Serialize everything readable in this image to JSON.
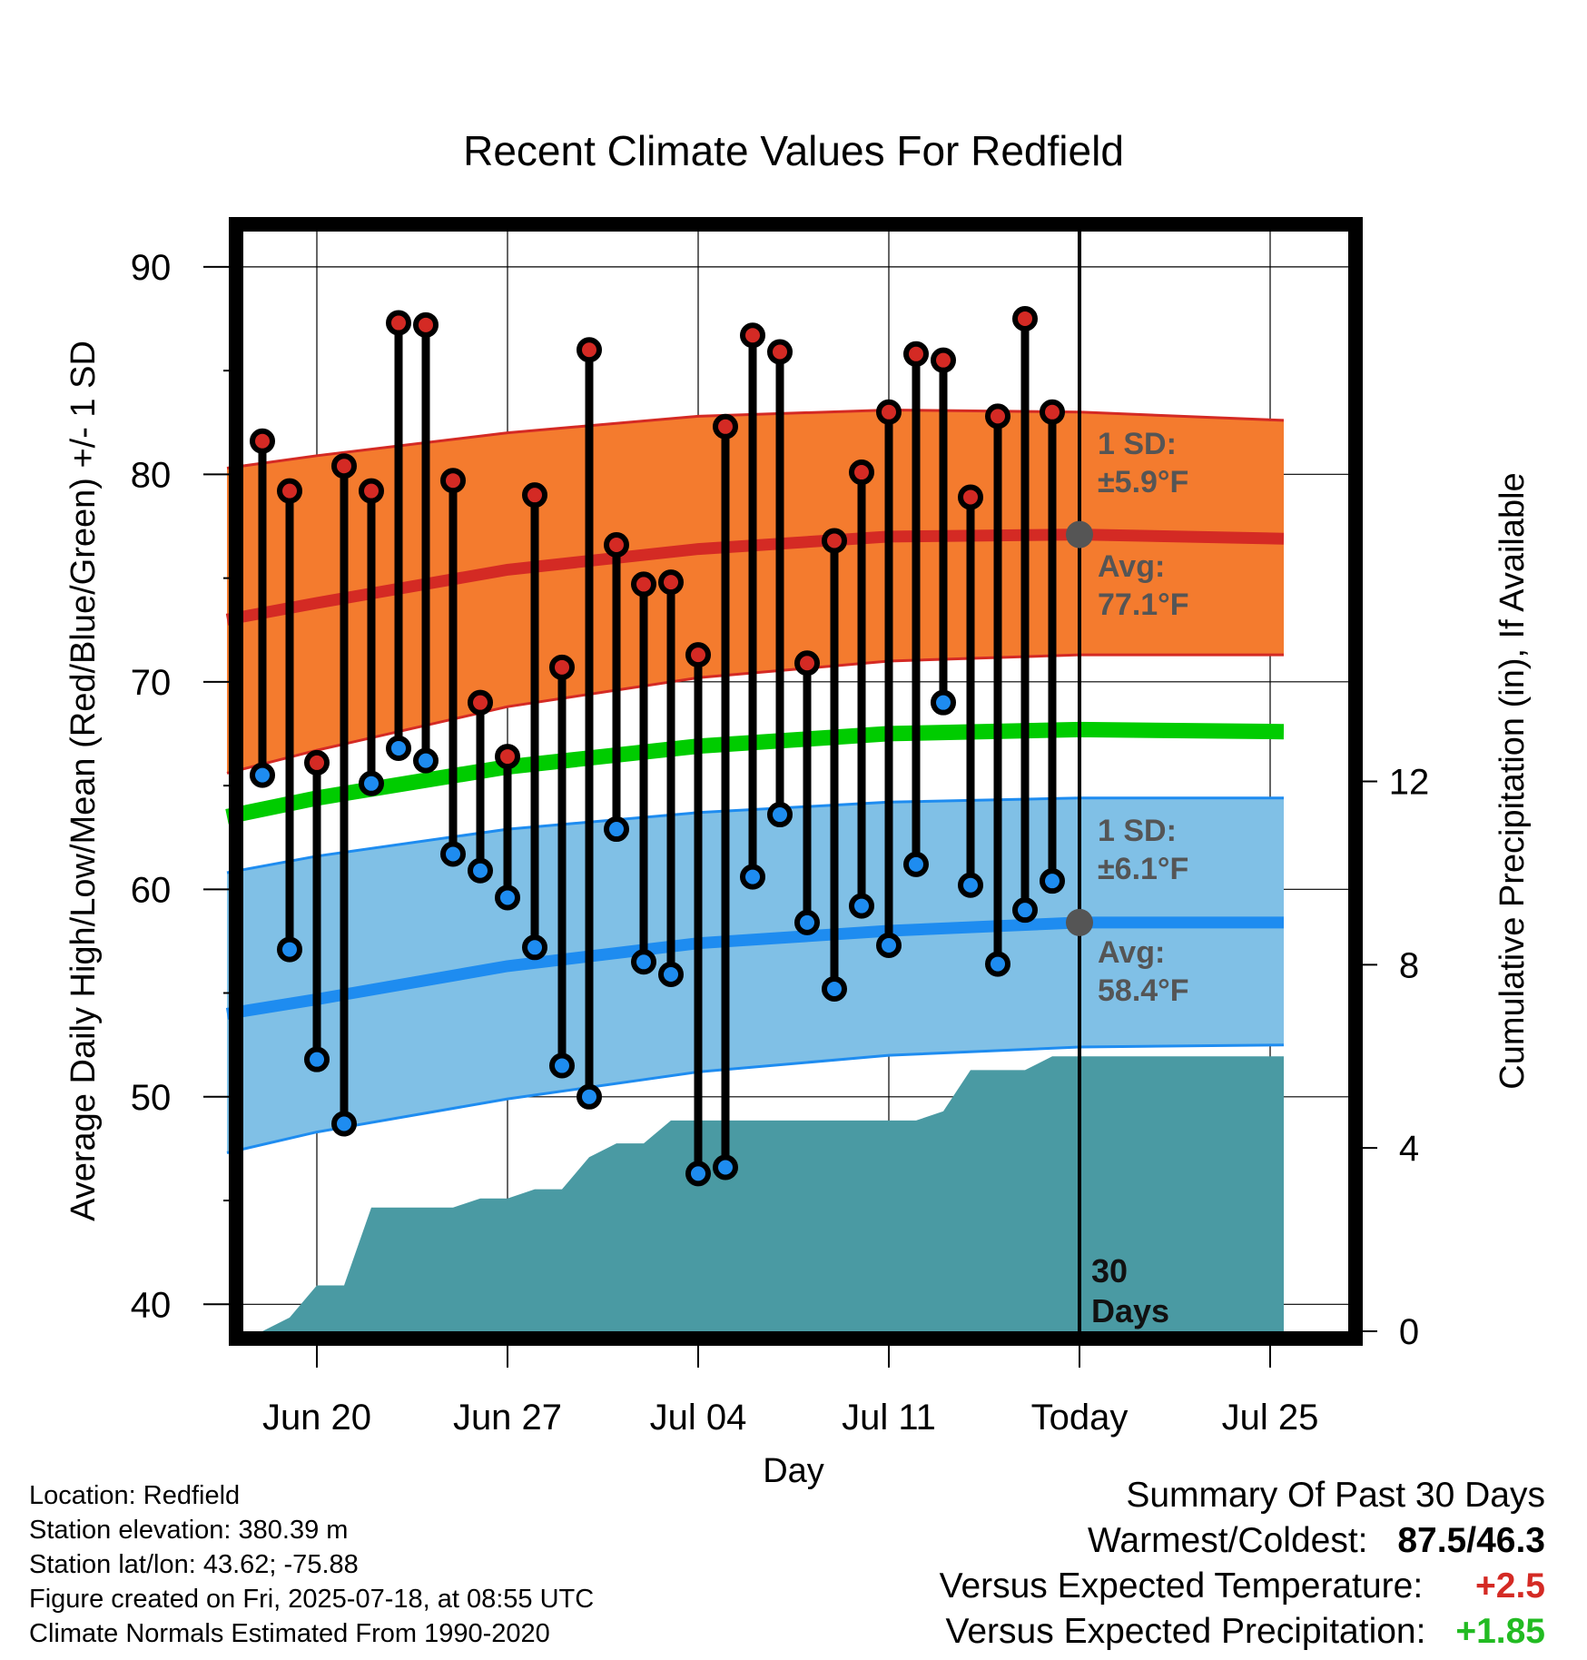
{
  "title": "Recent Climate Values For Redfield",
  "chart_data": {
    "type": "line",
    "title": "Recent Climate Values For Redfield",
    "xlabel": "Day",
    "ylabel_left": "Average Daily High/Low/Mean (Red/Blue/Green) +/- 1 SD",
    "ylabel_right": "Cumulative Precipitation (in), If Available",
    "x_tick_labels": [
      "Jun 20",
      "Jun 27",
      "Jul 04",
      "Jul 11",
      "Today",
      "Jul 25"
    ],
    "y_ticks_left": [
      40,
      50,
      60,
      70,
      80,
      90
    ],
    "y_ticks_right": [
      0,
      4,
      8,
      12
    ],
    "ylim_left": [
      38.7,
      91.7
    ],
    "ylim_right": [
      0,
      24
    ],
    "grid": true,
    "days": [
      "Jun 18",
      "Jun 19",
      "Jun 20",
      "Jun 21",
      "Jun 22",
      "Jun 23",
      "Jun 24",
      "Jun 25",
      "Jun 26",
      "Jun 27",
      "Jun 28",
      "Jun 29",
      "Jun 30",
      "Jul 01",
      "Jul 02",
      "Jul 03",
      "Jul 04",
      "Jul 05",
      "Jul 06",
      "Jul 07",
      "Jul 08",
      "Jul 09",
      "Jul 10",
      "Jul 11",
      "Jul 12",
      "Jul 13",
      "Jul 14",
      "Jul 15",
      "Jul 16",
      "Jul 17"
    ],
    "daily_high": [
      81.6,
      79.2,
      66.1,
      80.4,
      79.2,
      87.3,
      87.2,
      79.7,
      69.0,
      66.4,
      79.0,
      70.7,
      86.0,
      76.6,
      74.7,
      74.8,
      71.3,
      82.3,
      86.7,
      85.9,
      70.9,
      76.8,
      80.1,
      83.0,
      85.8,
      85.5,
      78.9,
      82.8,
      87.5,
      83.0
    ],
    "daily_low": [
      65.5,
      57.1,
      51.8,
      48.7,
      65.1,
      66.8,
      66.2,
      61.7,
      60.9,
      59.6,
      57.2,
      51.5,
      50.0,
      62.9,
      56.5,
      55.9,
      46.3,
      46.6,
      60.6,
      63.6,
      58.4,
      55.2,
      59.2,
      57.3,
      61.2,
      69.0,
      60.2,
      56.4,
      59.0,
      60.4
    ],
    "normal_high": {
      "x": [
        16.7,
        20,
        27,
        34,
        41,
        48,
        55.5
      ],
      "y": [
        73.0,
        73.8,
        75.4,
        76.4,
        77.0,
        77.1,
        76.9
      ]
    },
    "normal_high_sd_upper": {
      "x": [
        16.7,
        20,
        27,
        34,
        41,
        48,
        55.5
      ],
      "y": [
        80.3,
        80.9,
        82.0,
        82.8,
        83.1,
        83.0,
        82.6
      ]
    },
    "normal_high_sd_lower": {
      "x": [
        16.7,
        20,
        27,
        34,
        41,
        48,
        55.5
      ],
      "y": [
        65.6,
        66.7,
        68.8,
        70.2,
        71.0,
        71.3,
        71.3
      ]
    },
    "normal_mean": {
      "x": [
        16.7,
        20,
        27,
        34,
        41,
        48,
        55.5
      ],
      "y": [
        63.5,
        64.4,
        65.9,
        66.9,
        67.5,
        67.7,
        67.6
      ]
    },
    "normal_low": {
      "x": [
        16.7,
        20,
        27,
        34,
        41,
        48,
        55.5
      ],
      "y": [
        54.0,
        54.7,
        56.3,
        57.4,
        58.0,
        58.4,
        58.4
      ]
    },
    "normal_low_sd_upper": {
      "x": [
        16.7,
        20,
        27,
        34,
        41,
        48,
        55.5
      ],
      "y": [
        60.8,
        61.6,
        62.9,
        63.7,
        64.2,
        64.4,
        64.4
      ]
    },
    "normal_low_sd_lower": {
      "x": [
        16.7,
        20,
        27,
        34,
        41,
        48,
        55.5
      ],
      "y": [
        47.3,
        48.3,
        49.9,
        51.2,
        52.0,
        52.4,
        52.5
      ]
    },
    "cumulative_precip": {
      "x": [
        17.1,
        18.0,
        19.0,
        20.0,
        21.0,
        22.0,
        23.0,
        24.0,
        25.0,
        26.0,
        27.0,
        28.0,
        29.0,
        30.0,
        31.0,
        32.0,
        33.0,
        34.0,
        35.0,
        36.0,
        37.0,
        38.0,
        39.0,
        40.0,
        41.0,
        42.0,
        43.0,
        44.0,
        45.0,
        46.0,
        47.0,
        48.0,
        55.5
      ],
      "y": [
        0,
        0,
        0.3,
        1.0,
        1.0,
        2.7,
        2.7,
        2.7,
        2.7,
        2.9,
        2.9,
        3.1,
        3.1,
        3.8,
        4.1,
        4.1,
        4.6,
        4.6,
        4.6,
        4.6,
        4.6,
        4.6,
        4.6,
        4.6,
        4.6,
        4.6,
        4.8,
        5.7,
        5.7,
        5.7,
        6.0,
        6.0,
        6.0
      ]
    }
  },
  "annotations": {
    "high_sd_label": "1 SD:",
    "high_sd_value": "±5.9°F",
    "high_avg_label": "Avg:",
    "high_avg_value": "77.1°F",
    "low_sd_label": "1 SD:",
    "low_sd_value": "±6.1°F",
    "low_avg_label": "Avg:",
    "low_avg_value": "58.4°F",
    "days_number": "30",
    "days_word": "Days"
  },
  "station_info": [
    "Location: Redfield",
    "Station elevation: 380.39 m",
    "Station lat/lon: 43.62; -75.88",
    "Figure created on Fri, 2025-07-18, at 08:55 UTC",
    "Climate Normals Estimated From 1990-2020"
  ],
  "summary": {
    "heading": "Summary Of Past 30 Days",
    "warmest_label": "Warmest/Coldest:",
    "warmest_value": "87.5/46.3",
    "temp_label": "Versus Expected Temperature:",
    "temp_value": "+2.5",
    "precip_label": "Versus Expected Precipitation:",
    "precip_value": "+1.85"
  },
  "colors": {
    "high_band": "#f47b2e",
    "high_band_edge": "#d42a24",
    "high_line": "#d42a24",
    "low_band": "#80c0e6",
    "low_band_edge": "#1e8cf0",
    "low_line": "#1e8cf0",
    "mean_line": "#00cc00",
    "precip_fill": "#4a9aa3",
    "high_dot": "#d42a24",
    "low_dot": "#1e8cf0",
    "marker_gray": "#555555",
    "temp_positive": "#d42a24",
    "precip_positive": "#22bb22"
  }
}
